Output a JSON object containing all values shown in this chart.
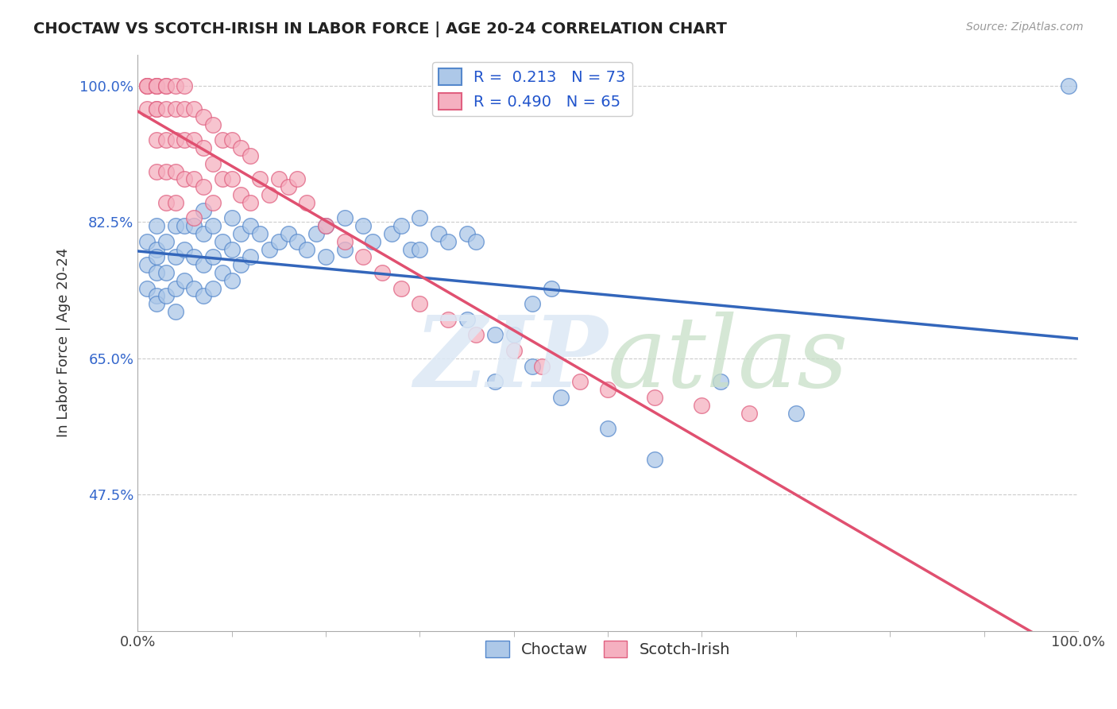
{
  "title": "CHOCTAW VS SCOTCH-IRISH IN LABOR FORCE | AGE 20-24 CORRELATION CHART",
  "source_text": "Source: ZipAtlas.com",
  "ylabel": "In Labor Force | Age 20-24",
  "xlim": [
    0.0,
    1.0
  ],
  "ylim": [
    0.3,
    1.04
  ],
  "ytick_vals": [
    0.475,
    0.65,
    0.825,
    1.0
  ],
  "ytick_labels": [
    "47.5%",
    "65.0%",
    "82.5%",
    "100.0%"
  ],
  "xtick_vals": [
    0.0,
    1.0
  ],
  "xtick_labels": [
    "0.0%",
    "100.0%"
  ],
  "legend_labels": [
    "Choctaw",
    "Scotch-Irish"
  ],
  "legend_r_choctaw": "R =  0.213",
  "legend_n_choctaw": "N = 73",
  "legend_r_scotch": "R = 0.490",
  "legend_n_scotch": "N = 65",
  "choctaw_fill": "#adc8e8",
  "scotch_fill": "#f5b0c0",
  "choctaw_edge": "#5588cc",
  "scotch_edge": "#e06080",
  "line_choctaw": "#3366bb",
  "line_scotch": "#e05070",
  "watermark_zip_color": "#dce8f5",
  "watermark_atlas_color": "#c8dfc8",
  "background_color": "#ffffff",
  "choctaw_x": [
    0.01,
    0.01,
    0.01,
    0.02,
    0.02,
    0.02,
    0.02,
    0.02,
    0.02,
    0.03,
    0.03,
    0.03,
    0.04,
    0.04,
    0.04,
    0.04,
    0.05,
    0.05,
    0.05,
    0.06,
    0.06,
    0.06,
    0.07,
    0.07,
    0.07,
    0.07,
    0.08,
    0.08,
    0.08,
    0.09,
    0.09,
    0.1,
    0.1,
    0.1,
    0.11,
    0.11,
    0.12,
    0.12,
    0.13,
    0.14,
    0.15,
    0.16,
    0.17,
    0.18,
    0.19,
    0.2,
    0.2,
    0.22,
    0.22,
    0.24,
    0.25,
    0.27,
    0.28,
    0.29,
    0.3,
    0.3,
    0.32,
    0.33,
    0.35,
    0.36,
    0.38,
    0.4,
    0.42,
    0.44,
    0.35,
    0.38,
    0.42,
    0.45,
    0.5,
    0.55,
    0.62,
    0.7,
    0.99
  ],
  "choctaw_y": [
    0.8,
    0.77,
    0.74,
    0.82,
    0.79,
    0.76,
    0.73,
    0.78,
    0.72,
    0.8,
    0.76,
    0.73,
    0.82,
    0.78,
    0.74,
    0.71,
    0.82,
    0.79,
    0.75,
    0.82,
    0.78,
    0.74,
    0.84,
    0.81,
    0.77,
    0.73,
    0.82,
    0.78,
    0.74,
    0.8,
    0.76,
    0.83,
    0.79,
    0.75,
    0.81,
    0.77,
    0.82,
    0.78,
    0.81,
    0.79,
    0.8,
    0.81,
    0.8,
    0.79,
    0.81,
    0.82,
    0.78,
    0.83,
    0.79,
    0.82,
    0.8,
    0.81,
    0.82,
    0.79,
    0.83,
    0.79,
    0.81,
    0.8,
    0.81,
    0.8,
    0.62,
    0.68,
    0.72,
    0.74,
    0.7,
    0.68,
    0.64,
    0.6,
    0.56,
    0.52,
    0.62,
    0.58,
    1.0
  ],
  "scotch_x": [
    0.01,
    0.01,
    0.01,
    0.01,
    0.02,
    0.02,
    0.02,
    0.02,
    0.02,
    0.02,
    0.02,
    0.03,
    0.03,
    0.03,
    0.03,
    0.03,
    0.03,
    0.04,
    0.04,
    0.04,
    0.04,
    0.04,
    0.05,
    0.05,
    0.05,
    0.05,
    0.06,
    0.06,
    0.06,
    0.06,
    0.07,
    0.07,
    0.07,
    0.08,
    0.08,
    0.08,
    0.09,
    0.09,
    0.1,
    0.1,
    0.11,
    0.11,
    0.12,
    0.12,
    0.13,
    0.14,
    0.15,
    0.16,
    0.17,
    0.18,
    0.2,
    0.22,
    0.24,
    0.26,
    0.28,
    0.3,
    0.33,
    0.36,
    0.4,
    0.43,
    0.47,
    0.5,
    0.55,
    0.6,
    0.65
  ],
  "scotch_y": [
    1.0,
    1.0,
    1.0,
    0.97,
    1.0,
    1.0,
    1.0,
    0.97,
    0.97,
    0.93,
    0.89,
    1.0,
    1.0,
    0.97,
    0.93,
    0.89,
    0.85,
    1.0,
    0.97,
    0.93,
    0.89,
    0.85,
    1.0,
    0.97,
    0.93,
    0.88,
    0.97,
    0.93,
    0.88,
    0.83,
    0.96,
    0.92,
    0.87,
    0.95,
    0.9,
    0.85,
    0.93,
    0.88,
    0.93,
    0.88,
    0.92,
    0.86,
    0.91,
    0.85,
    0.88,
    0.86,
    0.88,
    0.87,
    0.88,
    0.85,
    0.82,
    0.8,
    0.78,
    0.76,
    0.74,
    0.72,
    0.7,
    0.68,
    0.66,
    0.64,
    0.62,
    0.61,
    0.6,
    0.59,
    0.58
  ]
}
